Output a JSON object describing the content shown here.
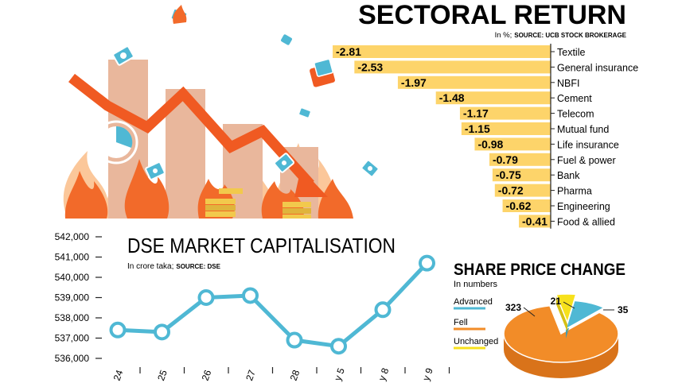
{
  "chart_data": [
    {
      "type": "bar",
      "title": "SECTORAL RETURN",
      "subtitle": "In %;",
      "source": "SOURCE: UCB STOCK BROKERAGE",
      "categories": [
        "Textile",
        "General insurance",
        "NBFI",
        "Cement",
        "Telecom",
        "Mutual fund",
        "Life insurance",
        "Fuel & power",
        "Bank",
        "Pharma",
        "Engineering",
        "Food & allied"
      ],
      "values": [
        -2.81,
        -2.53,
        -1.97,
        -1.48,
        -1.17,
        -1.15,
        -0.98,
        -0.79,
        -0.75,
        -0.72,
        -0.62,
        -0.41
      ],
      "value_labels": [
        "-2.81",
        "-2.53",
        "-1.97",
        "-1.48",
        "-1.17",
        "-1.15",
        "-0.98",
        "-0.79",
        "-0.75",
        "-0.72",
        "-0.62",
        "-0.41"
      ],
      "xlim": [
        -3,
        0
      ],
      "colors": {
        "bar": "#fdd46a",
        "axis": "#222222"
      }
    },
    {
      "type": "line",
      "title": "DSE MARKET CAPITALISATION",
      "subtitle": "In crore taka;",
      "source": "SOURCE: DSE",
      "x_labels": [
        "24",
        "25",
        "26",
        "27",
        "28",
        "y 5",
        "y 8",
        "y 9"
      ],
      "values": [
        537400,
        537300,
        539000,
        539100,
        536900,
        536600,
        538400,
        540700
      ],
      "ylim": [
        536000,
        542000
      ],
      "yticks": [
        "536,000",
        "537,000",
        "538,000",
        "539,000",
        "540,000",
        "541,000",
        "542,000"
      ],
      "colors": {
        "line": "#4fb8d4",
        "axis": "#222222"
      }
    },
    {
      "type": "pie",
      "title": "SHARE PRICE CHANGE",
      "subtitle": "In numbers",
      "categories": [
        "Advanced",
        "Fell",
        "Unchanged"
      ],
      "values": [
        35,
        323,
        21
      ],
      "value_labels": [
        "35",
        "323",
        "21"
      ],
      "colors": {
        "Advanced": "#4fb8d4",
        "Fell": "#f28c28",
        "Unchanged": "#f7e11c"
      }
    }
  ],
  "colors": {
    "flame": "#f26a2a",
    "flame_light": "#fbc79a",
    "building": "#e9b79c",
    "arrow": "#f05a22"
  },
  "icons": [
    "fire-illustration",
    "falling-arrow-icon",
    "coin-stack-icon",
    "cash-note-icon",
    "wallet-icon"
  ]
}
